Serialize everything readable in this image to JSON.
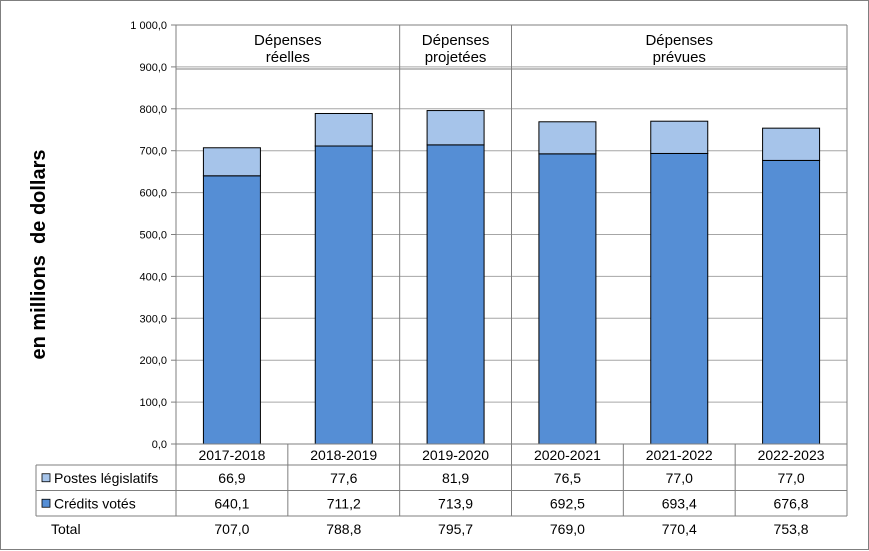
{
  "chart_data": {
    "type": "bar",
    "stacked": true,
    "ylabel": "en millions  de dollars",
    "ylim": [
      0,
      1000
    ],
    "ytick_step": 100,
    "ytick_labels": [
      "0,0",
      "100,0",
      "200,0",
      "300,0",
      "400,0",
      "500,0",
      "600,0",
      "700,0",
      "800,0",
      "900,0",
      "1 000,0"
    ],
    "grid": true,
    "categories": [
      "2017-2018",
      "2018-2019",
      "2019-2020",
      "2020-2021",
      "2021-2022",
      "2022-2023"
    ],
    "groups": [
      {
        "line1": "Dépenses",
        "line2": "réelles",
        "span": [
          0,
          1
        ]
      },
      {
        "line1": "Dépenses",
        "line2": "projetées",
        "span": [
          2,
          2
        ]
      },
      {
        "line1": "Dépenses",
        "line2": "prévues",
        "span": [
          3,
          5
        ]
      }
    ],
    "series": [
      {
        "name": "Crédits votés",
        "color": "#558ed5",
        "values": [
          640.1,
          711.2,
          713.9,
          692.5,
          693.4,
          676.8
        ],
        "labels": [
          "640,1",
          "711,2",
          "713,9",
          "692,5",
          "693,4",
          "676,8"
        ]
      },
      {
        "name": "Postes législatifs",
        "color": "#a6c4ea",
        "values": [
          66.9,
          77.6,
          81.9,
          76.5,
          77.0,
          77.0
        ],
        "labels": [
          "66,9",
          "77,6",
          "81,9",
          "76,5",
          "77,0",
          "77,0"
        ]
      }
    ],
    "table": {
      "rows": [
        {
          "name": "Postes législatifs",
          "series_index": 1,
          "color": "#a6c4ea"
        },
        {
          "name": "Crédits votés",
          "series_index": 0,
          "color": "#558ed5"
        },
        {
          "name": "Total",
          "values": [
            "707,0",
            "788,8",
            "795,7",
            "769,0",
            "770,4",
            "753,8"
          ]
        }
      ]
    }
  }
}
